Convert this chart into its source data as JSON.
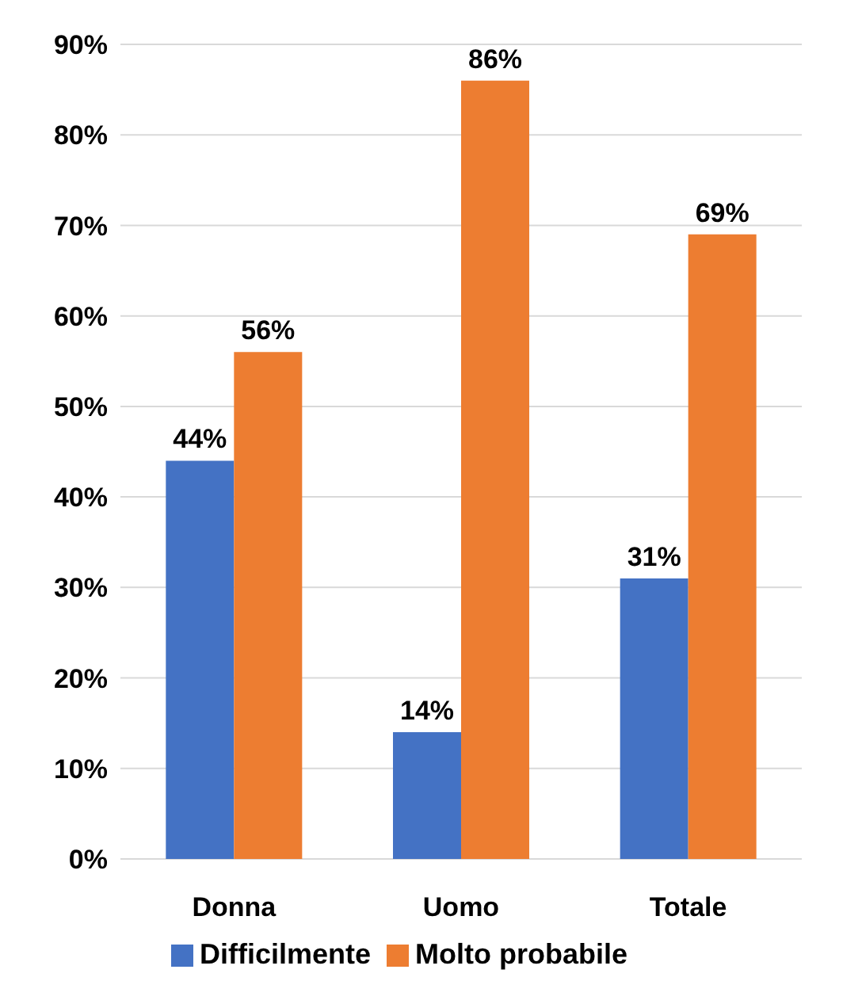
{
  "chart_data": {
    "type": "bar",
    "categories": [
      "Donna",
      "Uomo",
      "Totale"
    ],
    "series": [
      {
        "name": "Difficilmente",
        "color": "#4472c4",
        "values": [
          44,
          14,
          31
        ],
        "value_labels": [
          "44%",
          "14%",
          "31%"
        ]
      },
      {
        "name": "Molto probabile",
        "color": "#ed7d31",
        "values": [
          56,
          86,
          69
        ],
        "value_labels": [
          "56%",
          "86%",
          "69%"
        ]
      }
    ],
    "ylim": [
      0,
      90
    ],
    "yticks": [
      {
        "value": 0,
        "label": "0%"
      },
      {
        "value": 10,
        "label": "10%"
      },
      {
        "value": 20,
        "label": "20%"
      },
      {
        "value": 30,
        "label": "30%"
      },
      {
        "value": 40,
        "label": "40%"
      },
      {
        "value": 50,
        "label": "50%"
      },
      {
        "value": 60,
        "label": "60%"
      },
      {
        "value": 70,
        "label": "70%"
      },
      {
        "value": 80,
        "label": "80%"
      },
      {
        "value": 90,
        "label": "90%"
      }
    ],
    "grid": "y",
    "legend": "bottom"
  }
}
